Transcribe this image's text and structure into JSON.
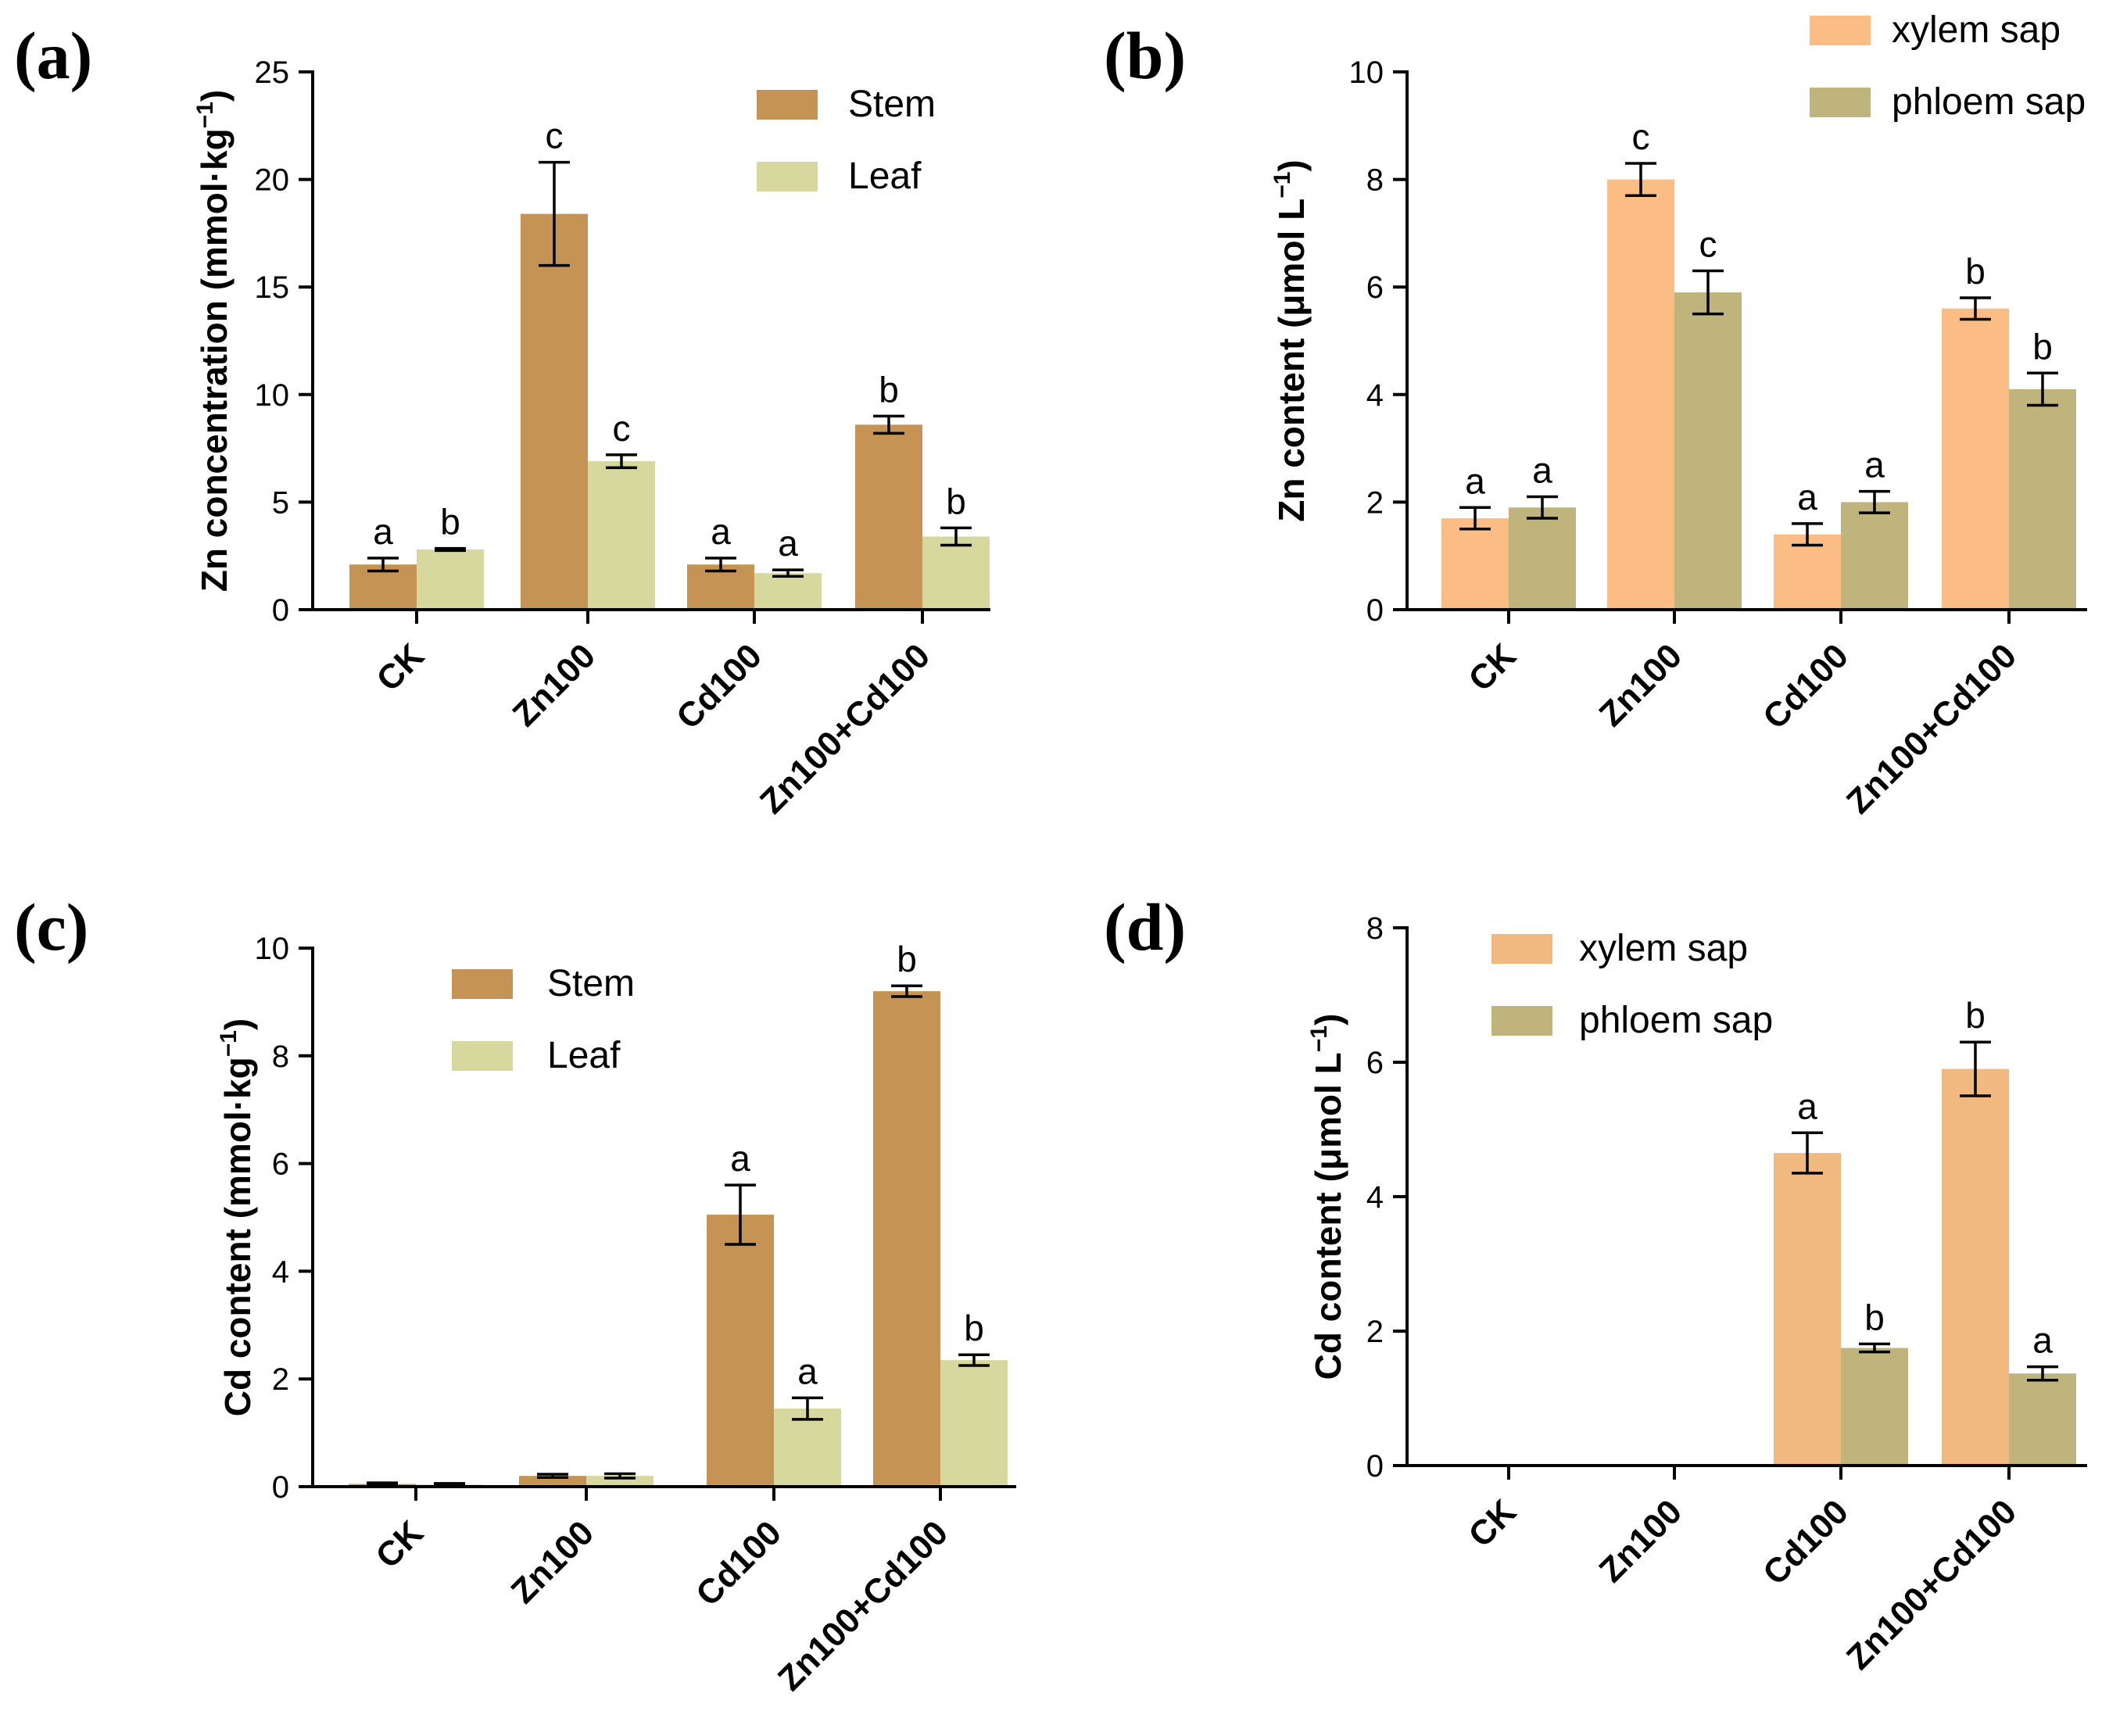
{
  "chart_data": [
    {
      "panel": "(a)",
      "type": "bar",
      "ylabel": "Zn concentration (mmol·kg",
      "ylabel_sup": "−1",
      "ylabel_tail": ")",
      "ylim": [
        0,
        25
      ],
      "yticks": [
        "0",
        "5",
        "10",
        "15",
        "20",
        "25"
      ],
      "categories": [
        "CK",
        "Zn100",
        "Cd100",
        "Zn100+Cd100"
      ],
      "legend_position": "top-right",
      "series": [
        {
          "name": "Stem",
          "color": "#c59353",
          "values": [
            2.1,
            18.4,
            2.1,
            8.6
          ],
          "errors": [
            0.3,
            2.4,
            0.3,
            0.4
          ],
          "letters": [
            "a",
            "c",
            "a",
            "b"
          ]
        },
        {
          "name": "Leaf",
          "color": "#d6d89d",
          "values": [
            2.8,
            6.9,
            1.7,
            3.4
          ],
          "errors": [
            0.05,
            0.3,
            0.15,
            0.4
          ],
          "letters": [
            "b",
            "c",
            "a",
            "b"
          ]
        }
      ]
    },
    {
      "panel": "(b)",
      "type": "bar",
      "ylabel": "Zn content (μmol L",
      "ylabel_sup": "−1",
      "ylabel_tail": ")",
      "ylim": [
        0,
        10
      ],
      "yticks": [
        "0",
        "2",
        "4",
        "6",
        "8",
        "10"
      ],
      "categories": [
        "CK",
        "Zn100",
        "Cd100",
        "Zn100+Cd100"
      ],
      "legend_position": "top-right",
      "series": [
        {
          "name": "xylem sap",
          "color": "#fbbd84",
          "values": [
            1.7,
            8.0,
            1.4,
            5.6
          ],
          "errors": [
            0.2,
            0.3,
            0.2,
            0.2
          ],
          "letters": [
            "a",
            "c",
            "a",
            "b"
          ]
        },
        {
          "name": "phloem sap",
          "color": "#c0b47d",
          "values": [
            1.9,
            5.9,
            2.0,
            4.1
          ],
          "errors": [
            0.2,
            0.4,
            0.2,
            0.3
          ],
          "letters": [
            "a",
            "c",
            "a",
            "b"
          ]
        }
      ]
    },
    {
      "panel": "(c)",
      "type": "bar",
      "ylabel": "Cd content (mmol·kg",
      "ylabel_sup": "−1",
      "ylabel_tail": ")",
      "ylim": [
        0,
        10
      ],
      "yticks": [
        "0",
        "2",
        "4",
        "6",
        "8",
        "10"
      ],
      "categories": [
        "CK",
        "Zn100",
        "Cd100",
        "Zn100+Cd100"
      ],
      "legend_position": "top-center",
      "series": [
        {
          "name": "Stem",
          "color": "#c59353",
          "values": [
            0.05,
            0.2,
            5.05,
            9.2
          ],
          "errors": [
            0.02,
            0.03,
            0.55,
            0.1
          ],
          "letters": [
            "",
            "",
            "a",
            "b"
          ]
        },
        {
          "name": "Leaf",
          "color": "#d6d89d",
          "values": [
            0.04,
            0.2,
            1.45,
            2.35
          ],
          "errors": [
            0.02,
            0.04,
            0.2,
            0.1
          ],
          "letters": [
            "",
            "",
            "a",
            "b"
          ]
        }
      ]
    },
    {
      "panel": "(d)",
      "type": "bar",
      "ylabel": "Cd content (μmol L",
      "ylabel_sup": "−1",
      "ylabel_tail": ")",
      "ylim": [
        0,
        8
      ],
      "yticks": [
        "0",
        "2",
        "4",
        "6",
        "8"
      ],
      "categories": [
        "CK",
        "Zn100",
        "Cd100",
        "Zn100+Cd100"
      ],
      "legend_position": "top-left",
      "series": [
        {
          "name": "xylem sap",
          "color": "#f1b880",
          "values": [
            0,
            0,
            4.65,
            5.9
          ],
          "errors": [
            0,
            0,
            0.3,
            0.4
          ],
          "letters": [
            "",
            "",
            "a",
            "b"
          ]
        },
        {
          "name": "phloem sap",
          "color": "#c0b47d",
          "values": [
            0,
            0,
            1.75,
            1.37
          ],
          "errors": [
            0,
            0,
            0.06,
            0.1
          ],
          "letters": [
            "",
            "",
            "b",
            "a"
          ]
        }
      ]
    }
  ]
}
